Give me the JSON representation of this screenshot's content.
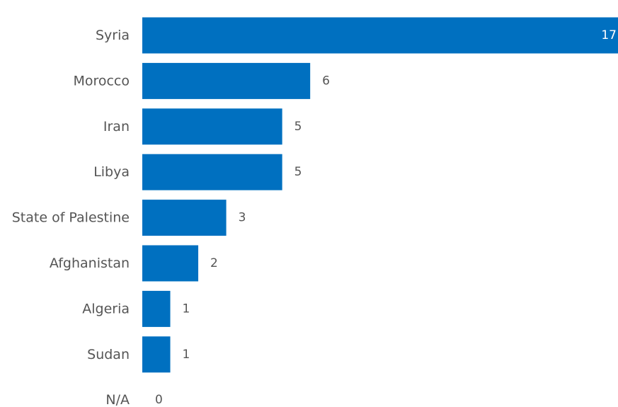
{
  "chart_data": {
    "type": "bar",
    "orientation": "horizontal",
    "categories": [
      "Syria",
      "Morocco",
      "Iran",
      "Libya",
      "State of Palestine",
      "Afghanistan",
      "Algeria",
      "Sudan",
      "N/A"
    ],
    "values": [
      17,
      6,
      5,
      5,
      3,
      2,
      1,
      1,
      0
    ],
    "bar_color": "#0070C0",
    "label_color": "#555555",
    "inside_label_color": "#ffffff",
    "xlim": [
      0,
      17
    ],
    "grid": false,
    "legend": "none"
  }
}
